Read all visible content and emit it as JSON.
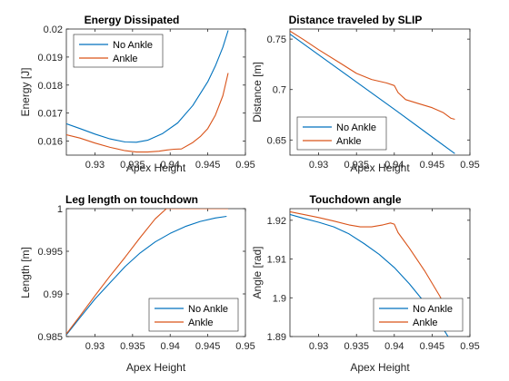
{
  "figure": {
    "background": "#ffffff",
    "series_colors": [
      "#0072BD",
      "#D95319"
    ]
  },
  "chart_data": [
    {
      "type": "line",
      "title": "Energy Dissipated",
      "xlabel": "Apex Height",
      "ylabel": "Energy [J]",
      "xlim": [
        0.9262,
        0.95
      ],
      "ylim": [
        0.0155,
        0.02
      ],
      "xticks": [
        0.93,
        0.935,
        0.94,
        0.945,
        0.95
      ],
      "xtick_labels": [
        "0.93",
        "0.935",
        "0.94",
        "0.945",
        "0.95"
      ],
      "yticks": [
        0.016,
        0.017,
        0.018,
        0.019,
        0.02
      ],
      "ytick_labels": [
        "0.016",
        "0.017",
        "0.018",
        "0.019",
        "0.02"
      ],
      "legend_position": "top-left",
      "grid": false,
      "series": [
        {
          "name": "No Ankle",
          "color": "#0072BD",
          "x": [
            0.9262,
            0.928,
            0.93,
            0.932,
            0.934,
            0.9355,
            0.937,
            0.939,
            0.941,
            0.943,
            0.945,
            0.946,
            0.947,
            0.9477
          ],
          "y": [
            0.01662,
            0.01645,
            0.01625,
            0.01608,
            0.01597,
            0.01596,
            0.01603,
            0.01627,
            0.01665,
            0.01727,
            0.01812,
            0.01868,
            0.01935,
            0.01995
          ]
        },
        {
          "name": "Ankle",
          "color": "#D95319",
          "x": [
            0.9262,
            0.928,
            0.93,
            0.932,
            0.934,
            0.9355,
            0.937,
            0.9385,
            0.9395,
            0.9405,
            0.9415,
            0.943,
            0.944,
            0.945,
            0.946,
            0.947,
            0.9477
          ],
          "y": [
            0.01623,
            0.01611,
            0.01593,
            0.01578,
            0.01566,
            0.01561,
            0.01561,
            0.01564,
            0.01568,
            0.01571,
            0.01572,
            0.01595,
            0.01616,
            0.01645,
            0.01692,
            0.01762,
            0.01843
          ]
        }
      ]
    },
    {
      "type": "line",
      "title": "Distance traveled by SLIP",
      "xlabel": "Apex Height",
      "ylabel": "Distance [m]",
      "xlim": [
        0.9262,
        0.95
      ],
      "ylim": [
        0.635,
        0.76
      ],
      "xticks": [
        0.93,
        0.935,
        0.94,
        0.945,
        0.95
      ],
      "xtick_labels": [
        "0.93",
        "0.935",
        "0.94",
        "0.945",
        "0.95"
      ],
      "yticks": [
        0.65,
        0.7,
        0.75
      ],
      "ytick_labels": [
        "0.65",
        "0.7",
        "0.75"
      ],
      "legend_position": "bottom-left",
      "grid": false,
      "series": [
        {
          "name": "No Ankle",
          "color": "#0072BD",
          "x": [
            0.9262,
            0.93,
            0.935,
            0.94,
            0.945,
            0.948
          ],
          "y": [
            0.755,
            0.7345,
            0.7075,
            0.6805,
            0.653,
            0.6365
          ]
        },
        {
          "name": "Ankle",
          "color": "#D95319",
          "x": [
            0.9262,
            0.928,
            0.93,
            0.933,
            0.935,
            0.937,
            0.939,
            0.94,
            0.9405,
            0.9415,
            0.943,
            0.945,
            0.9465,
            0.9475,
            0.948
          ],
          "y": [
            0.758,
            0.7495,
            0.7395,
            0.7255,
            0.716,
            0.71,
            0.7065,
            0.704,
            0.697,
            0.69,
            0.6865,
            0.682,
            0.677,
            0.6715,
            0.6705
          ]
        }
      ]
    },
    {
      "type": "line",
      "title": "Leg length on touchdown",
      "xlabel": "Apex Height",
      "ylabel": "Length [m]",
      "xlim": [
        0.9262,
        0.95
      ],
      "ylim": [
        0.985,
        1.0
      ],
      "xticks": [
        0.93,
        0.935,
        0.94,
        0.945,
        0.95
      ],
      "xtick_labels": [
        "0.93",
        "0.935",
        "0.94",
        "0.945",
        "0.95"
      ],
      "yticks": [
        0.985,
        0.99,
        0.995,
        1.0
      ],
      "ytick_labels": [
        "0.985",
        "0.99",
        "0.995",
        "1"
      ],
      "legend_position": "bottom-right",
      "grid": false,
      "series": [
        {
          "name": "No Ankle",
          "color": "#0072BD",
          "x": [
            0.9262,
            0.928,
            0.93,
            0.932,
            0.934,
            0.936,
            0.938,
            0.94,
            0.942,
            0.944,
            0.946,
            0.9475
          ],
          "y": [
            0.9852,
            0.9872,
            0.9894,
            0.9913,
            0.9932,
            0.9948,
            0.9961,
            0.9971,
            0.9979,
            0.9985,
            0.9989,
            0.9991
          ]
        },
        {
          "name": "Ankle",
          "color": "#D95319",
          "x": [
            0.9262,
            0.928,
            0.93,
            0.932,
            0.934,
            0.936,
            0.938,
            0.9395,
            0.9405,
            0.9477
          ],
          "y": [
            0.9853,
            0.9874,
            0.9898,
            0.9921,
            0.9943,
            0.9966,
            0.9988,
            1.0,
            1.0,
            1.0
          ]
        }
      ]
    },
    {
      "type": "line",
      "title": "Touchdown angle",
      "xlabel": "Apex Height",
      "ylabel": "Angle [rad]",
      "xlim": [
        0.9262,
        0.95
      ],
      "ylim": [
        1.89,
        1.923
      ],
      "xticks": [
        0.93,
        0.935,
        0.94,
        0.945,
        0.95
      ],
      "xtick_labels": [
        "0.93",
        "0.935",
        "0.94",
        "0.945",
        "0.95"
      ],
      "yticks": [
        1.89,
        1.9,
        1.91,
        1.92
      ],
      "ytick_labels": [
        "1.89",
        "1.9",
        "1.91",
        "1.92"
      ],
      "legend_position": "bottom-right",
      "grid": false,
      "series": [
        {
          "name": "No Ankle",
          "color": "#0072BD",
          "x": [
            0.9262,
            0.928,
            0.93,
            0.932,
            0.934,
            0.936,
            0.938,
            0.94,
            0.942,
            0.944,
            0.946,
            0.9478
          ],
          "y": [
            1.9215,
            1.9205,
            1.9195,
            1.9183,
            1.9165,
            1.914,
            1.9112,
            1.9078,
            1.9036,
            1.8988,
            1.8935,
            1.8878
          ]
        },
        {
          "name": "Ankle",
          "color": "#D95319",
          "x": [
            0.9262,
            0.928,
            0.93,
            0.932,
            0.934,
            0.9355,
            0.937,
            0.9385,
            0.9395,
            0.94,
            0.9405,
            0.942,
            0.944,
            0.946,
            0.9478
          ],
          "y": [
            1.9222,
            1.9215,
            1.9207,
            1.9198,
            1.9188,
            1.9183,
            1.9183,
            1.9188,
            1.9193,
            1.919,
            1.9168,
            1.9128,
            1.907,
            1.9005,
            1.8935
          ]
        }
      ]
    }
  ]
}
